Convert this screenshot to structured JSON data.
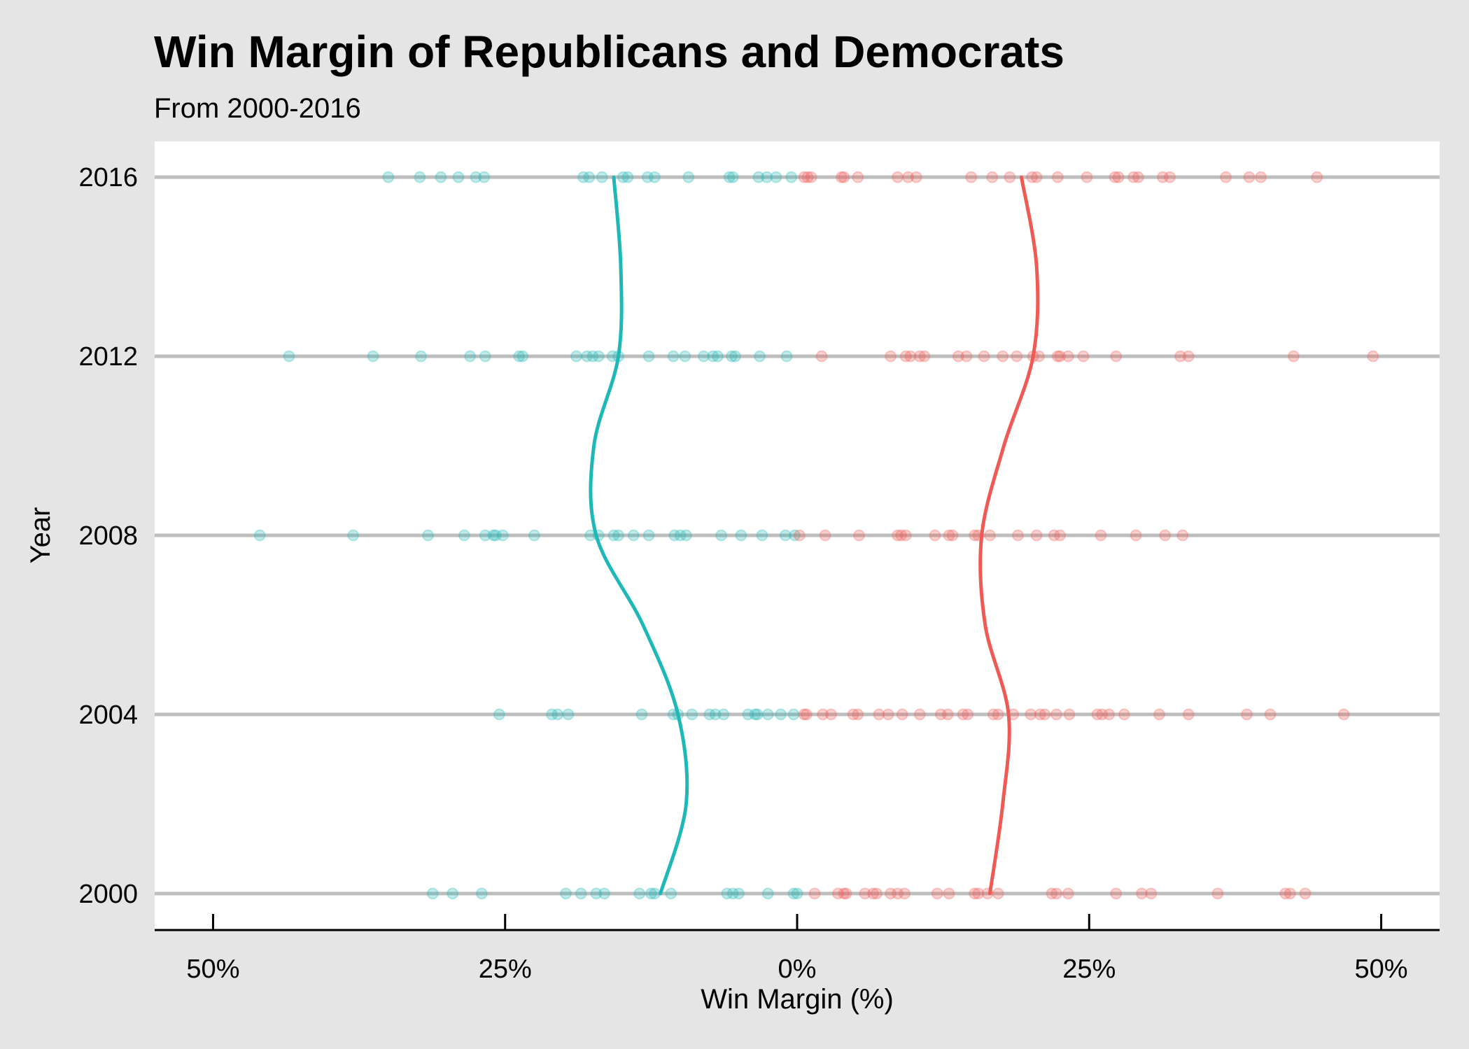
{
  "chart_data": {
    "type": "scatter",
    "title": "Win Margin of Republicans and Democrats",
    "subtitle": "From 2000-2016",
    "xlabel": "Win Margin (%)",
    "ylabel": "Year",
    "xlim": [
      -55,
      55
    ],
    "ylim": [
      1999.2,
      2016.8
    ],
    "x_ticks": [
      -50,
      -25,
      0,
      25,
      50
    ],
    "x_tick_labels": [
      "50%",
      "25%",
      "0%",
      "25%",
      "50%"
    ],
    "y_ticks": [
      2000,
      2004,
      2008,
      2012,
      2016
    ],
    "y_tick_labels": [
      "2000",
      "2004",
      "2008",
      "2012",
      "2016"
    ],
    "grid": "horizontal at each year",
    "colors": {
      "democrat": "#1fb8b8",
      "republican": "#f05a55",
      "gridline": "#bebebe",
      "panel": "#ffffff",
      "background": "#e5e5e5"
    },
    "series": [
      {
        "party": "democrat",
        "color": "#1fb8b8",
        "points": [
          {
            "year": 2000,
            "margins": [
              -31.2,
              -29.5,
              -27,
              -19.8,
              -18.5,
              -17.2,
              -16.5,
              -13.5,
              -12.5,
              -12.2,
              -10.8,
              -6,
              -5.5,
              -5,
              -2.5,
              -0.3,
              0
            ]
          },
          {
            "year": 2004,
            "margins": [
              -25.5,
              -21,
              -20.5,
              -19.6,
              -13.3,
              -10.6,
              -10.2,
              -9,
              -7.5,
              -7,
              -6.3,
              -4.2,
              -3.6,
              -3.4,
              -2.5,
              -1.4,
              -0.3
            ]
          },
          {
            "year": 2008,
            "margins": [
              -46,
              -38,
              -31.6,
              -28.5,
              -26.7,
              -26,
              -25.8,
              -25.2,
              -22.5,
              -17.7,
              -17,
              -15.7,
              -15.3,
              -14,
              -12.7,
              -10.5,
              -10,
              -9.5,
              -6.5,
              -4.8,
              -3,
              -1,
              -0.2
            ]
          },
          {
            "year": 2012,
            "margins": [
              -43.5,
              -36.3,
              -32.2,
              -28,
              -26.7,
              -23.8,
              -23.5,
              -18.9,
              -18,
              -17.5,
              -17,
              -15.8,
              -15.3,
              -12.7,
              -10.6,
              -9.6,
              -8,
              -7.2,
              -6.8,
              -5.6,
              -5.3,
              -3.2,
              -0.9
            ]
          },
          {
            "year": 2016,
            "margins": [
              -35,
              -32.3,
              -30.5,
              -29,
              -27.5,
              -26.8,
              -18.3,
              -17.8,
              -16.7,
              -14.9,
              -14.5,
              -12.8,
              -12.2,
              -9.3,
              -5.8,
              -5.5,
              -3.3,
              -2.6,
              -1.8,
              -0.5
            ]
          }
        ],
        "trend": [
          {
            "year": 2000,
            "margin": -11.7
          },
          {
            "year": 2002,
            "margin": -9.5
          },
          {
            "year": 2004,
            "margin": -10.2
          },
          {
            "year": 2006,
            "margin": -13.2
          },
          {
            "year": 2008,
            "margin": -17.2
          },
          {
            "year": 2010,
            "margin": -17.4
          },
          {
            "year": 2012,
            "margin": -15.3
          },
          {
            "year": 2014,
            "margin": -15.1
          },
          {
            "year": 2016,
            "margin": -15.7
          }
        ]
      },
      {
        "party": "republican",
        "color": "#f05a55",
        "points": [
          {
            "year": 2000,
            "margins": [
              1.5,
              3.5,
              4,
              4.2,
              5.8,
              6.5,
              6.8,
              8,
              8.6,
              9.2,
              12,
              13,
              15.2,
              15.5,
              16.3,
              17.2,
              21.8,
              22.2,
              23.2,
              27.3,
              29.5,
              30.3,
              36,
              41.8,
              42.2,
              43.5
            ]
          },
          {
            "year": 2004,
            "margins": [
              0.6,
              0.8,
              2.2,
              2.9,
              4.8,
              5.2,
              7,
              7.8,
              9,
              10.5,
              12.3,
              12.9,
              14.2,
              14.6,
              16.8,
              17.2,
              18.5,
              20,
              20.8,
              21.2,
              22.2,
              23.3,
              25.7,
              26.1,
              26.7,
              28,
              31,
              33.5,
              38.5,
              40.5,
              46.8
            ]
          },
          {
            "year": 2008,
            "margins": [
              0.2,
              2.4,
              5.3,
              8.6,
              8.9,
              9.3,
              11.8,
              13,
              13.3,
              15.2,
              15.5,
              16.5,
              18.9,
              20.5,
              22,
              22.5,
              26,
              29,
              31.5,
              33
            ]
          },
          {
            "year": 2012,
            "margins": [
              2.1,
              8,
              9.3,
              9.7,
              10.5,
              10.9,
              13.8,
              14.5,
              16,
              17.6,
              18.8,
              20.2,
              20.7,
              22.3,
              22.5,
              23.2,
              24.5,
              27.3,
              32.8,
              33.5,
              42.5,
              49.3
            ]
          },
          {
            "year": 2016,
            "margins": [
              0.6,
              0.9,
              1.2,
              3.8,
              4,
              5.2,
              8.6,
              9.5,
              10.2,
              14.9,
              16.7,
              18.2,
              20.1,
              20.5,
              22.3,
              24.8,
              27.2,
              27.5,
              28.8,
              29.2,
              31.3,
              31.9,
              36.7,
              38.7,
              39.7,
              44.5
            ]
          }
        ],
        "trend": [
          {
            "year": 2000,
            "margin": 16.5
          },
          {
            "year": 2002,
            "margin": 17.6
          },
          {
            "year": 2004,
            "margin": 18.1
          },
          {
            "year": 2006,
            "margin": 16.1
          },
          {
            "year": 2008,
            "margin": 15.8
          },
          {
            "year": 2010,
            "margin": 17.7
          },
          {
            "year": 2012,
            "margin": 20.2
          },
          {
            "year": 2014,
            "margin": 20.5
          },
          {
            "year": 2016,
            "margin": 19.2
          }
        ]
      }
    ]
  }
}
